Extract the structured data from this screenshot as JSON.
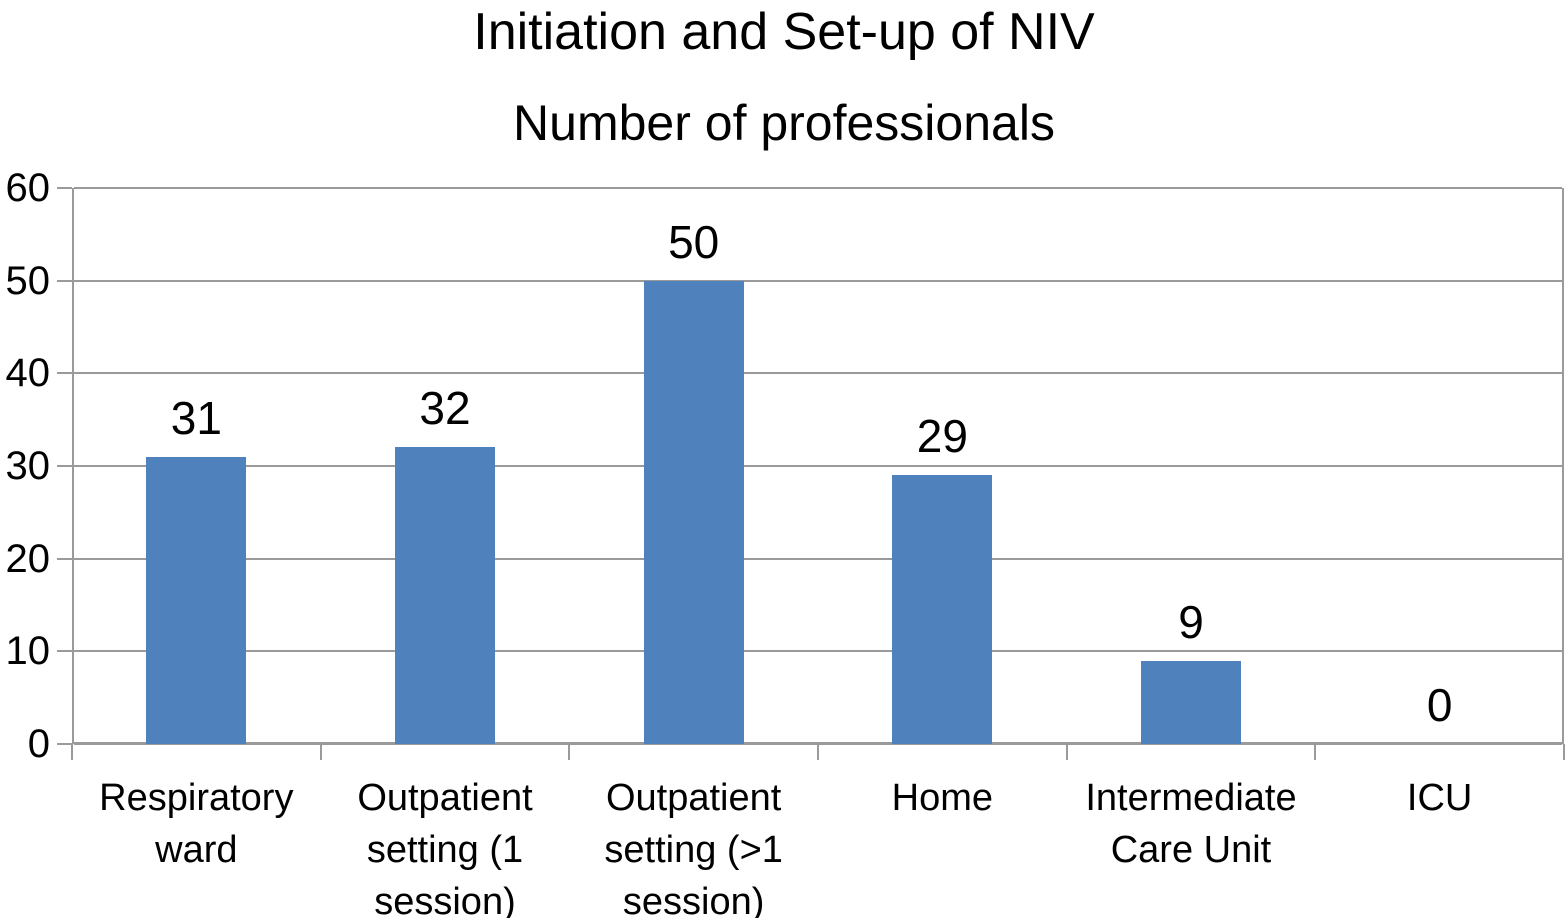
{
  "chart_data": {
    "type": "bar",
    "title": "Initiation and Set-up of NIV",
    "subtitle": "Number of professionals",
    "categories": [
      "Respiratory ward",
      "Outpatient setting (1 session)",
      "Outpatient setting (>1 session)",
      "Home",
      "Intermediate Care Unit",
      "ICU"
    ],
    "values": [
      31,
      32,
      50,
      29,
      9,
      0
    ],
    "value_labels": [
      "31",
      "32",
      "50",
      "29",
      "9",
      "0"
    ],
    "ylabel": "",
    "xlabel": "",
    "ylim": [
      0,
      60
    ],
    "yticks": [
      "0",
      "10",
      "20",
      "30",
      "40",
      "50",
      "60"
    ],
    "ytick_values": [
      0,
      10,
      20,
      30,
      40,
      50,
      60
    ],
    "grid": true,
    "legend": "none",
    "bar_color": "#4f81bd",
    "gridline_color": "#9a9a9a",
    "axis_color": "#9a9a9a",
    "text_color": "#000000",
    "background_color": "#ffffff"
  }
}
